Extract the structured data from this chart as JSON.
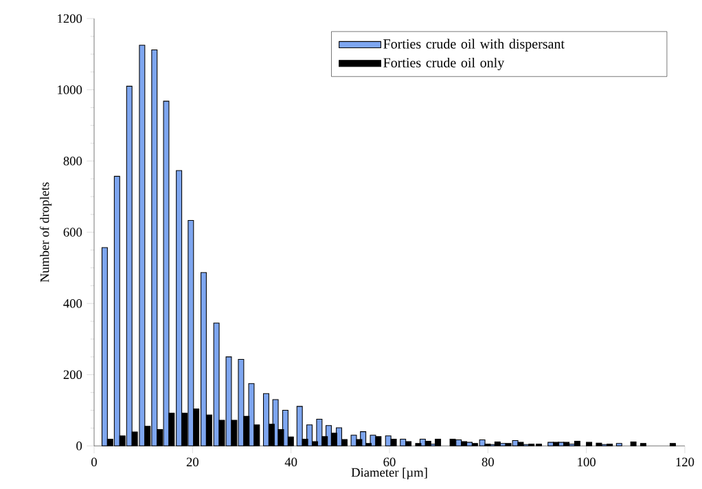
{
  "chart_data": {
    "type": "bar",
    "xlabel": "Diameter [µm]",
    "ylabel": "Number of droplets",
    "x": [
      2.7,
      5.2,
      7.7,
      10.3,
      12.8,
      15.2,
      17.8,
      20.2,
      22.8,
      25.4,
      27.9,
      30.4,
      32.5,
      35.5,
      37.4,
      39.4,
      42.3,
      44.3,
      46.3,
      48.2,
      50.3,
      53.3,
      55.2,
      57.2,
      60.3,
      63.3,
      65.3,
      67.3,
      69.3,
      72.3,
      74.6,
      76.8,
      79.4,
      81.4,
      83.6,
      86.1,
      88.3,
      89.8,
      93.3,
      95.4,
      97.6,
      100,
      102,
      104.2,
      107.2,
      109,
      111,
      117
    ],
    "series": [
      {
        "name": "Forties crude oil with dispersant",
        "color": "#7ea6f0",
        "values": [
          557,
          757,
          1010,
          1125,
          1112,
          968,
          773,
          633,
          487,
          345,
          250,
          243,
          175,
          147,
          130,
          100,
          111,
          59,
          75,
          57,
          51,
          30,
          40,
          30,
          28,
          19,
          null,
          19,
          5,
          null,
          17,
          10,
          17,
          4,
          7,
          15,
          4,
          null,
          10,
          10,
          5,
          null,
          null,
          4,
          7,
          null,
          null,
          null
        ]
      },
      {
        "name": "Forties crude oil only",
        "color": "#000000",
        "values": [
          19,
          28,
          39,
          55,
          46,
          92,
          92,
          104,
          87,
          72,
          72,
          83,
          59,
          61,
          46,
          25,
          19,
          12,
          26,
          36,
          18,
          18,
          7,
          26,
          19,
          12,
          7,
          13,
          19,
          19,
          12,
          7,
          5,
          11,
          7,
          10,
          5,
          5,
          10,
          10,
          13,
          10,
          8,
          5,
          null,
          11,
          7,
          7
        ]
      }
    ],
    "xlim": [
      0,
      120
    ],
    "xticks": [
      0,
      20,
      40,
      60,
      80,
      100,
      120
    ],
    "ylim": [
      0,
      1200
    ],
    "yticks": [
      0,
      200,
      400,
      600,
      800,
      1000,
      1200
    ],
    "grid": false,
    "legend": "top right"
  }
}
